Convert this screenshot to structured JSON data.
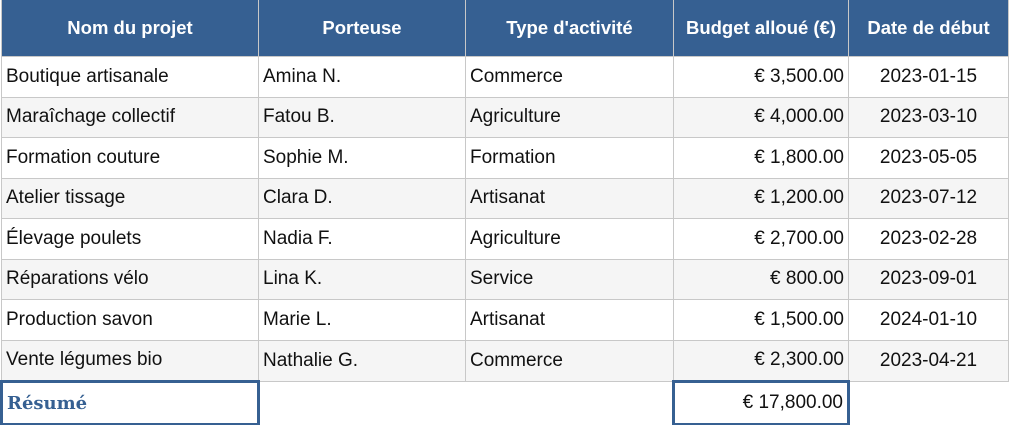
{
  "columns": [
    "Nom du projet",
    "Porteuse",
    "Type d'activité",
    "Budget alloué (€)",
    "Date de début"
  ],
  "rows": [
    [
      "Boutique artisanale",
      "Amina N.",
      "Commerce",
      "€ 3,500.00",
      "2023-01-15"
    ],
    [
      "Maraîchage collectif",
      "Fatou B.",
      "Agriculture",
      "€ 4,000.00",
      "2023-03-10"
    ],
    [
      "Formation couture",
      "Sophie M.",
      "Formation",
      "€ 1,800.00",
      "2023-05-05"
    ],
    [
      "Atelier tissage",
      "Clara D.",
      "Artisanat",
      "€ 1,200.00",
      "2023-07-12"
    ],
    [
      "Élevage poulets",
      "Nadia F.",
      "Agriculture",
      "€ 2,700.00",
      "2023-02-28"
    ],
    [
      "Réparations vélo",
      "Lina K.",
      "Service",
      "€ 800.00",
      "2023-09-01"
    ],
    [
      "Production savon",
      "Marie L.",
      "Artisanat",
      "€ 1,500.00",
      "2024-01-10"
    ],
    [
      "Vente légumes bio",
      "Nathalie G.",
      "Commerce",
      "€ 2,300.00",
      "2023-04-21"
    ]
  ],
  "summary": {
    "label": "Résumé",
    "total": "€ 17,800.00"
  },
  "colors": {
    "header": "#366092",
    "border": "#c8c8c8",
    "alt_row": "#f5f5f5"
  }
}
